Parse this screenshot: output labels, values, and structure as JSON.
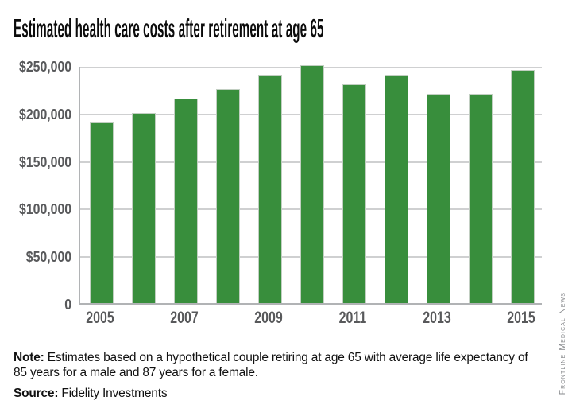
{
  "title": "Estimated health care costs after retirement at age 65",
  "chart_data": {
    "type": "bar",
    "title": "Estimated health care costs after retirement at age 65",
    "categories": [
      "2005",
      "2006",
      "2007",
      "2008",
      "2009",
      "2010",
      "2011",
      "2012",
      "2013",
      "2014",
      "2015"
    ],
    "values": [
      190000,
      200000,
      215000,
      225000,
      240000,
      250000,
      230000,
      240000,
      220000,
      220000,
      245000
    ],
    "xlabel": "",
    "ylabel": "",
    "ylim": [
      0,
      250000
    ],
    "y_ticks": [
      {
        "value": 250000,
        "label": "$250,000"
      },
      {
        "value": 200000,
        "label": "$200,000"
      },
      {
        "value": 150000,
        "label": "$150,000"
      },
      {
        "value": 100000,
        "label": "$100,000"
      },
      {
        "value": 50000,
        "label": "$50,000"
      },
      {
        "value": 0,
        "label": "0"
      }
    ],
    "x_tick_labels": [
      "2005",
      "2007",
      "2009",
      "2011",
      "2013",
      "2015"
    ],
    "gridlines": true,
    "legend_position": "none",
    "bar_color": "#388e3c"
  },
  "note": {
    "label": "Note:",
    "text": " Estimates based on a hypothetical couple retiring at age 65 with average life expectancy of 85 years for a male and 87 years for a female."
  },
  "source": {
    "label": "Source:",
    "text": " Fidelity Investments"
  },
  "credit": "Frontline Medical News",
  "colors": {
    "bar": "#388e3c",
    "grid": "#cfd0d1",
    "axis": "#b1b3b5",
    "tick_text": "#58595b",
    "title_text": "#0b0b0b",
    "credit_text": "#87898c"
  }
}
